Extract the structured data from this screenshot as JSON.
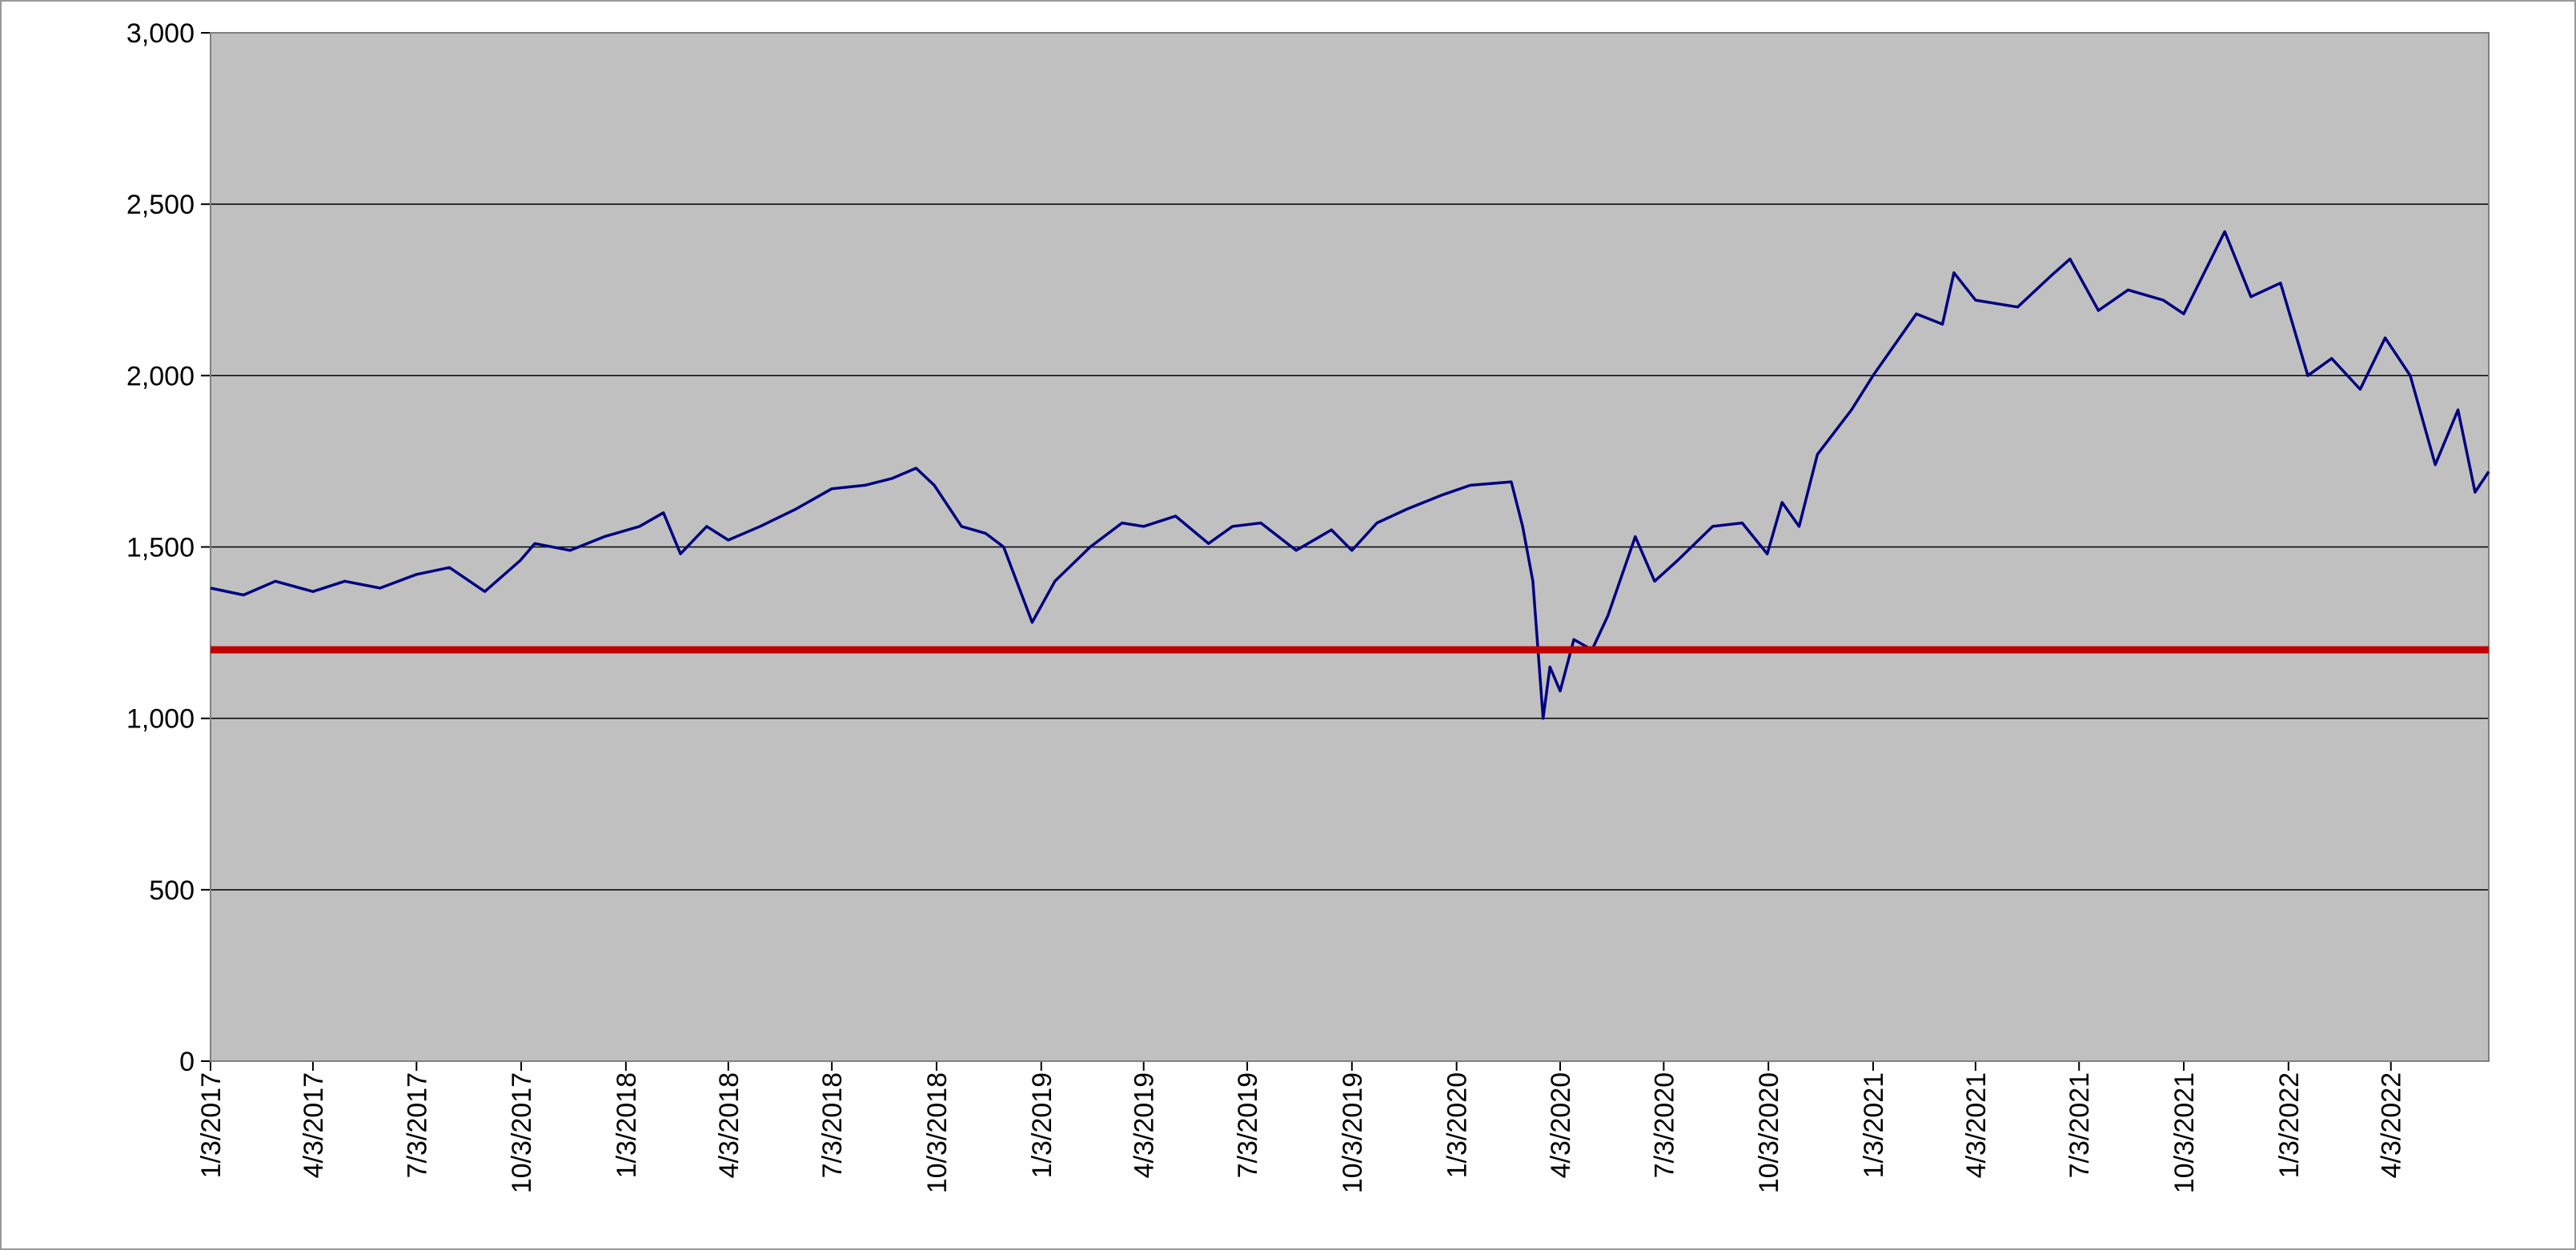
{
  "chart_data": {
    "type": "line",
    "x": [
      "2017-01-03",
      "2017-02-01",
      "2017-03-01",
      "2017-04-03",
      "2017-05-01",
      "2017-06-01",
      "2017-07-03",
      "2017-08-01",
      "2017-09-01",
      "2017-10-02",
      "2017-10-15",
      "2017-11-15",
      "2017-12-15",
      "2018-01-15",
      "2018-02-05",
      "2018-02-20",
      "2018-03-15",
      "2018-04-03",
      "2018-05-01",
      "2018-06-01",
      "2018-07-03",
      "2018-08-01",
      "2018-08-25",
      "2018-09-15",
      "2018-10-01",
      "2018-10-25",
      "2018-11-15",
      "2018-12-01",
      "2018-12-26",
      "2019-01-15",
      "2019-02-15",
      "2019-03-15",
      "2019-04-03",
      "2019-05-01",
      "2019-05-30",
      "2019-06-20",
      "2019-07-15",
      "2019-08-15",
      "2019-09-15",
      "2019-10-03",
      "2019-10-25",
      "2019-11-20",
      "2019-12-20",
      "2020-01-15",
      "2020-02-20",
      "2020-03-01",
      "2020-03-10",
      "2020-03-19",
      "2020-03-25",
      "2020-04-03",
      "2020-04-15",
      "2020-05-01",
      "2020-05-15",
      "2020-06-08",
      "2020-06-25",
      "2020-07-15",
      "2020-08-15",
      "2020-09-10",
      "2020-10-02",
      "2020-10-15",
      "2020-10-30",
      "2020-11-15",
      "2020-12-15",
      "2021-01-03",
      "2021-02-10",
      "2021-03-05",
      "2021-03-15",
      "2021-04-03",
      "2021-05-10",
      "2021-06-08",
      "2021-06-25",
      "2021-07-20",
      "2021-08-15",
      "2021-09-15",
      "2021-10-03",
      "2021-11-08",
      "2021-12-01",
      "2021-12-27",
      "2022-01-20",
      "2022-02-10",
      "2022-03-07",
      "2022-03-29",
      "2022-04-20",
      "2022-05-12",
      "2022-06-01",
      "2022-06-16",
      "2022-06-28"
    ],
    "series": [
      {
        "color": "#000080",
        "values": [
          1380,
          1360,
          1400,
          1370,
          1400,
          1380,
          1420,
          1440,
          1370,
          1460,
          1510,
          1490,
          1530,
          1560,
          1600,
          1480,
          1560,
          1520,
          1560,
          1610,
          1670,
          1680,
          1700,
          1730,
          1680,
          1560,
          1540,
          1500,
          1280,
          1400,
          1500,
          1570,
          1560,
          1590,
          1510,
          1560,
          1570,
          1490,
          1550,
          1490,
          1570,
          1610,
          1650,
          1680,
          1690,
          1560,
          1400,
          1000,
          1150,
          1080,
          1230,
          1200,
          1300,
          1530,
          1400,
          1460,
          1560,
          1570,
          1480,
          1630,
          1560,
          1770,
          1900,
          2000,
          2180,
          2150,
          2300,
          2220,
          2200,
          2290,
          2340,
          2190,
          2250,
          2220,
          2180,
          2420,
          2230,
          2270,
          2000,
          2050,
          1960,
          2110,
          2000,
          1740,
          1900,
          1660,
          1720
        ]
      }
    ],
    "reference_line": {
      "value": 1200,
      "color": "#c00000"
    },
    "xlim": [
      "2017-01-03",
      "2022-06-28"
    ],
    "xticks": [
      {
        "value": "2017-01-03",
        "label": "1/3/2017"
      },
      {
        "value": "2017-04-03",
        "label": "4/3/2017"
      },
      {
        "value": "2017-07-03",
        "label": "7/3/2017"
      },
      {
        "value": "2017-10-03",
        "label": "10/3/2017"
      },
      {
        "value": "2018-01-03",
        "label": "1/3/2018"
      },
      {
        "value": "2018-04-03",
        "label": "4/3/2018"
      },
      {
        "value": "2018-07-03",
        "label": "7/3/2018"
      },
      {
        "value": "2018-10-03",
        "label": "10/3/2018"
      },
      {
        "value": "2019-01-03",
        "label": "1/3/2019"
      },
      {
        "value": "2019-04-03",
        "label": "4/3/2019"
      },
      {
        "value": "2019-07-03",
        "label": "7/3/2019"
      },
      {
        "value": "2019-10-03",
        "label": "10/3/2019"
      },
      {
        "value": "2020-01-03",
        "label": "1/3/2020"
      },
      {
        "value": "2020-04-03",
        "label": "4/3/2020"
      },
      {
        "value": "2020-07-03",
        "label": "7/3/2020"
      },
      {
        "value": "2020-10-03",
        "label": "10/3/2020"
      },
      {
        "value": "2021-01-03",
        "label": "1/3/2021"
      },
      {
        "value": "2021-04-03",
        "label": "4/3/2021"
      },
      {
        "value": "2021-07-03",
        "label": "7/3/2021"
      },
      {
        "value": "2021-10-03",
        "label": "10/3/2021"
      },
      {
        "value": "2022-01-03",
        "label": "1/3/2022"
      },
      {
        "value": "2022-04-03",
        "label": "4/3/2022"
      }
    ],
    "ylim": [
      0,
      3000
    ],
    "yticks": [
      0,
      500,
      {
        "value": 1000,
        "label": "1,000"
      },
      {
        "value": 1500,
        "label": "1,500"
      },
      {
        "value": 2000,
        "label": "2,000"
      },
      {
        "value": 2500,
        "label": "2,500"
      },
      {
        "value": 3000,
        "label": "3,000"
      }
    ],
    "grid": true,
    "background": "#c0c0c0"
  }
}
